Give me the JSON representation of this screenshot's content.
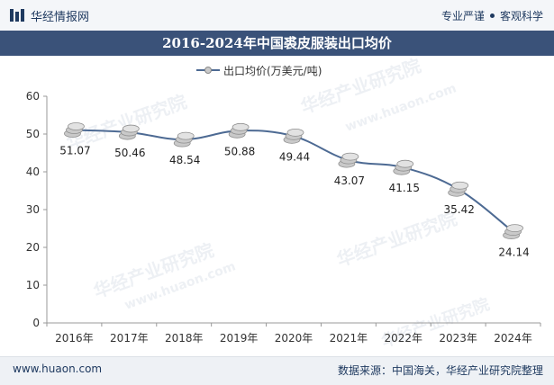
{
  "header": {
    "brand_name": "华经情报网",
    "tagline_left": "专业严谨",
    "tagline_right": "客观科学",
    "title": "2016-2024年中国裘皮服装出口均价"
  },
  "watermark": {
    "text": "华经产业研究院",
    "url": "www.huaon.com"
  },
  "footer": {
    "website": "www.huaon.com",
    "source": "数据来源：中国海关，华经产业研究院整理"
  },
  "colors": {
    "brand": "#1f3a60",
    "title_band": "#3a5279",
    "series_line": "#4d6a93",
    "marker": "#c9c9c9"
  },
  "chart_data": {
    "type": "line",
    "title": "2016-2024年中国裘皮服装出口均价",
    "categories": [
      "2016年",
      "2017年",
      "2018年",
      "2019年",
      "2020年",
      "2021年",
      "2022年",
      "2023年",
      "2024年"
    ],
    "series": [
      {
        "name": "出口均价(万美元/吨)",
        "values": [
          51.07,
          50.46,
          48.54,
          50.88,
          49.44,
          43.07,
          41.15,
          35.42,
          24.14
        ]
      }
    ],
    "data_labels": [
      "51.07",
      "50.46",
      "48.54",
      "50.88",
      "49.44",
      "43.07",
      "41.15",
      "35.42",
      "24.14"
    ],
    "ylim": [
      0,
      60
    ],
    "yticks": [
      0,
      10,
      20,
      30,
      40,
      50,
      60
    ],
    "grid": false,
    "legend_position": "top-center",
    "marker": "coin-stack",
    "smooth": true
  }
}
